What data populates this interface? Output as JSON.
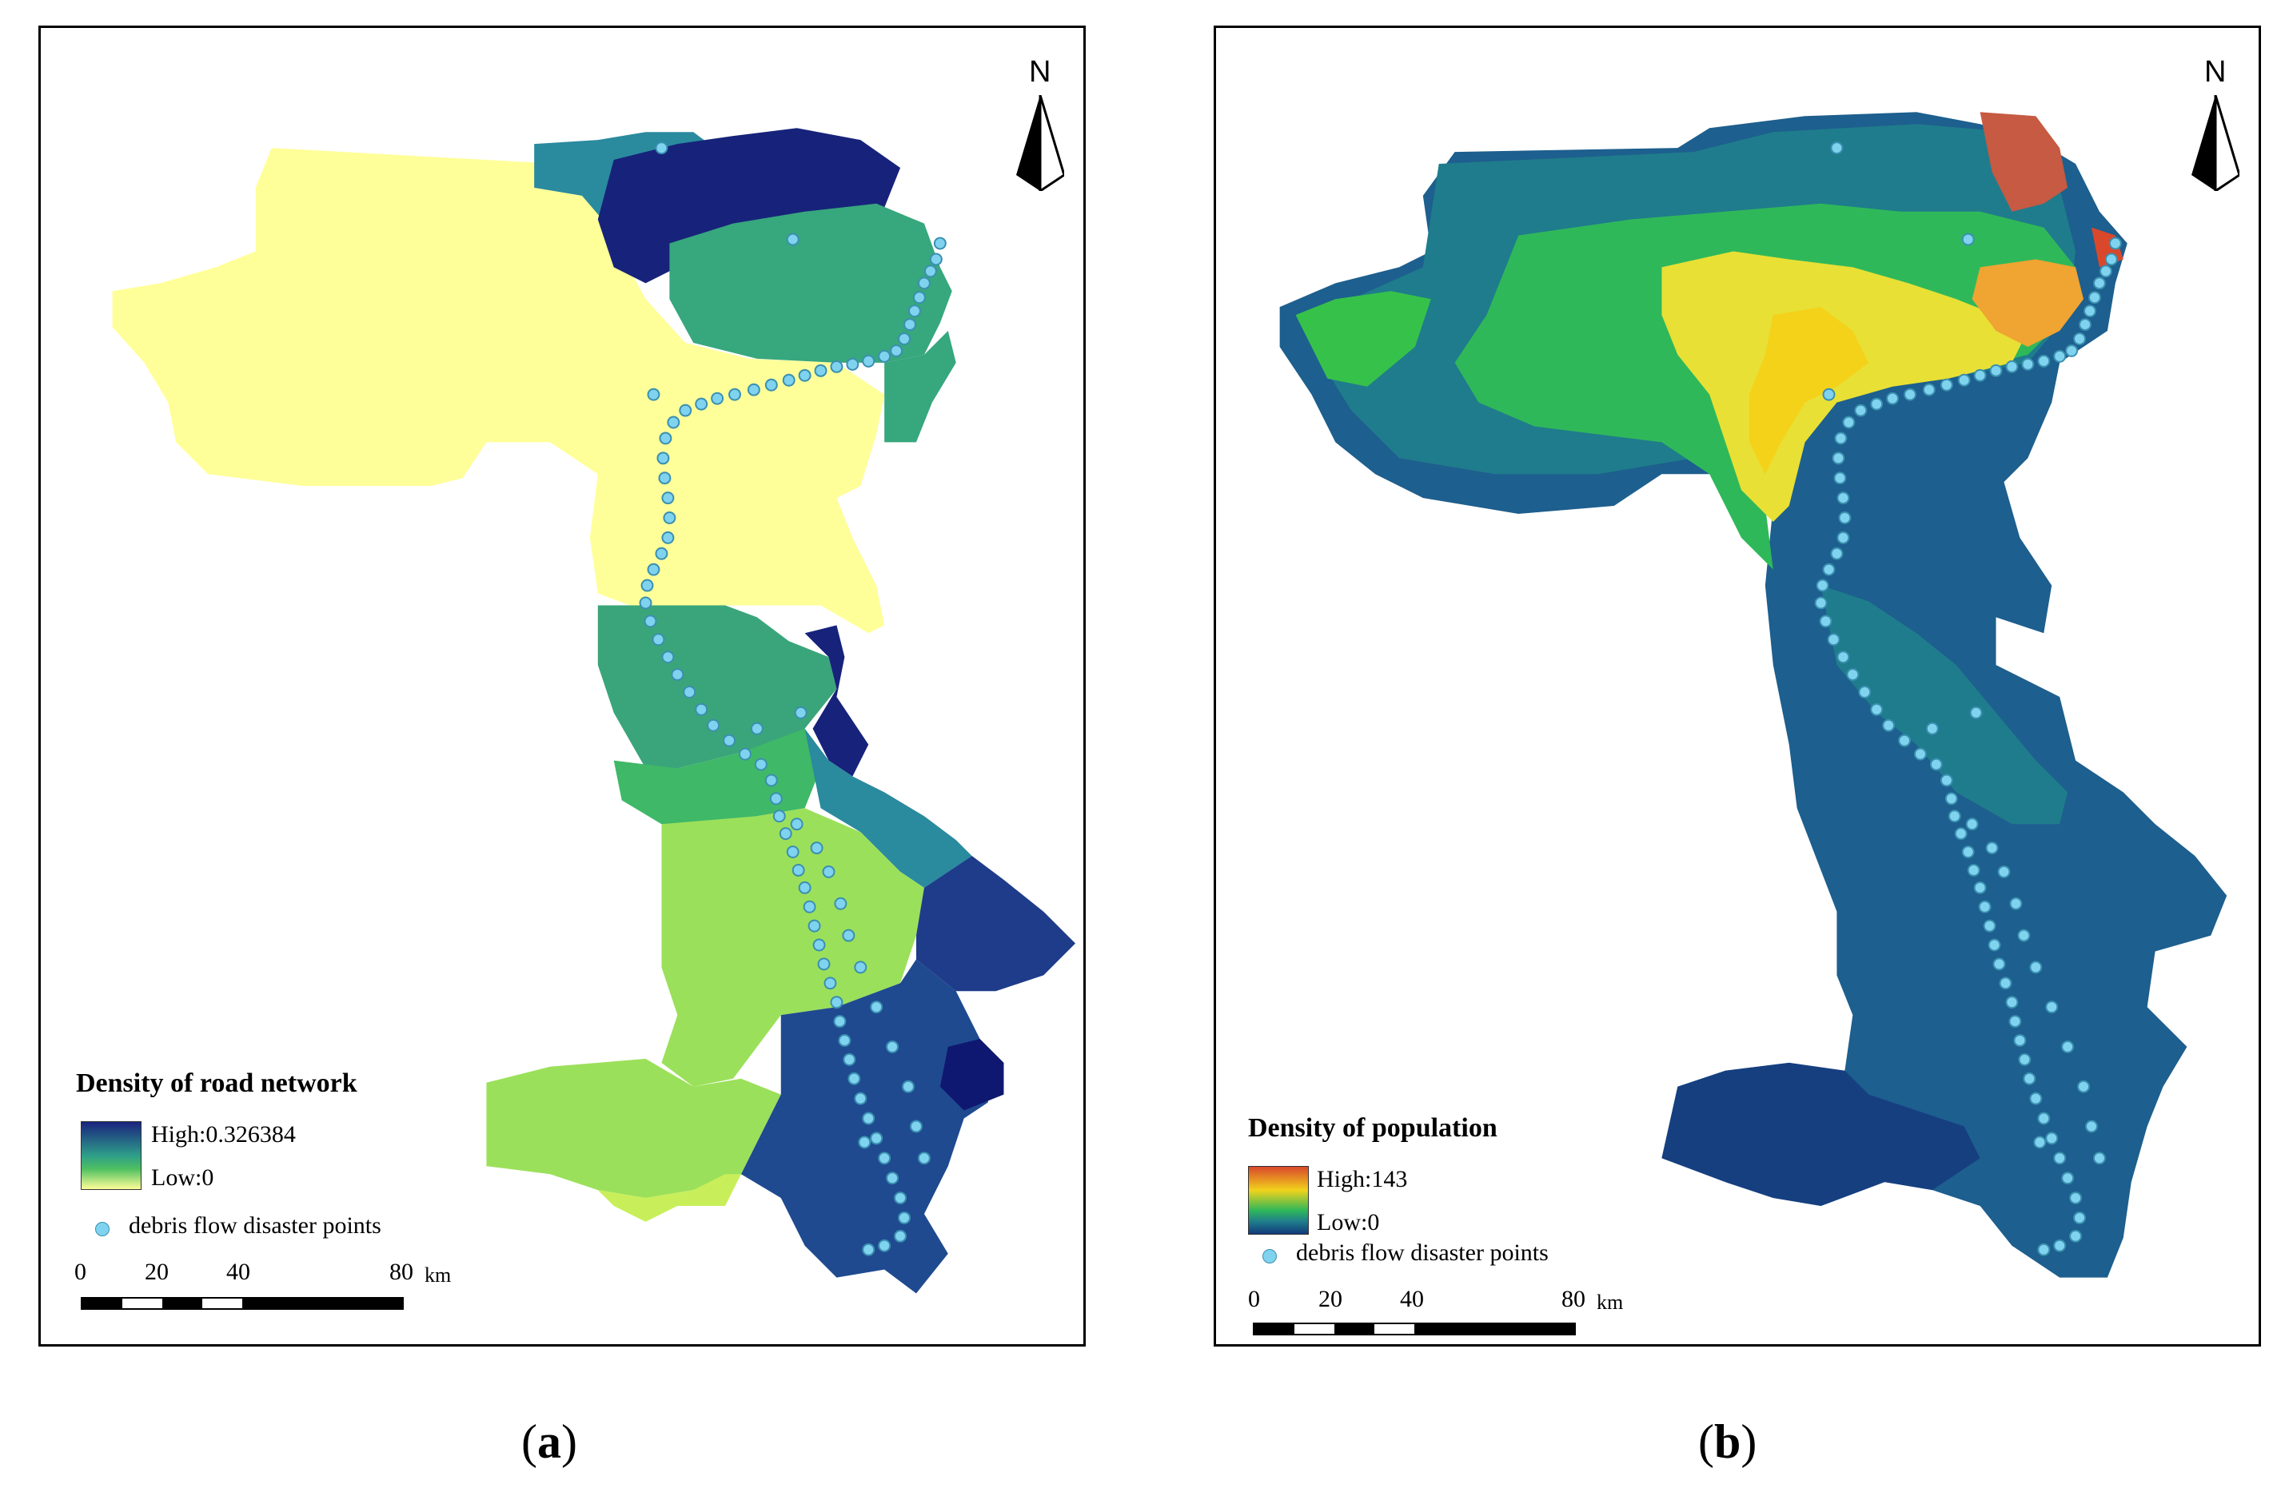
{
  "panels": [
    {
      "legend_title": "Density of road network",
      "legend_high": "High:0.326384",
      "legend_low": "Low:0",
      "points_label": "debris flow disaster points",
      "scale_ticks": [
        "0",
        "20",
        "40",
        "80"
      ],
      "scale_unit": "km",
      "north": "N",
      "caption": "(a)",
      "caption_letter": "a"
    },
    {
      "legend_title": "Density of population",
      "legend_high": "High:143",
      "legend_low": "Low:0",
      "points_label": "debris flow disaster points",
      "scale_ticks": [
        "0",
        "20",
        "40",
        "80"
      ],
      "scale_unit": "km",
      "north": "N",
      "caption": "(b)",
      "caption_letter": "b"
    }
  ],
  "colors": {
    "road_high": "#1a237e",
    "road_mid": "#2e9e8a",
    "road_low": "#ffff99",
    "pop_high": "#d9482b",
    "pop_mid": "#f1d21b",
    "pop_low": "#123a7a",
    "point_fill": "#7fd3ef",
    "point_stroke": "#3a8fb0"
  }
}
